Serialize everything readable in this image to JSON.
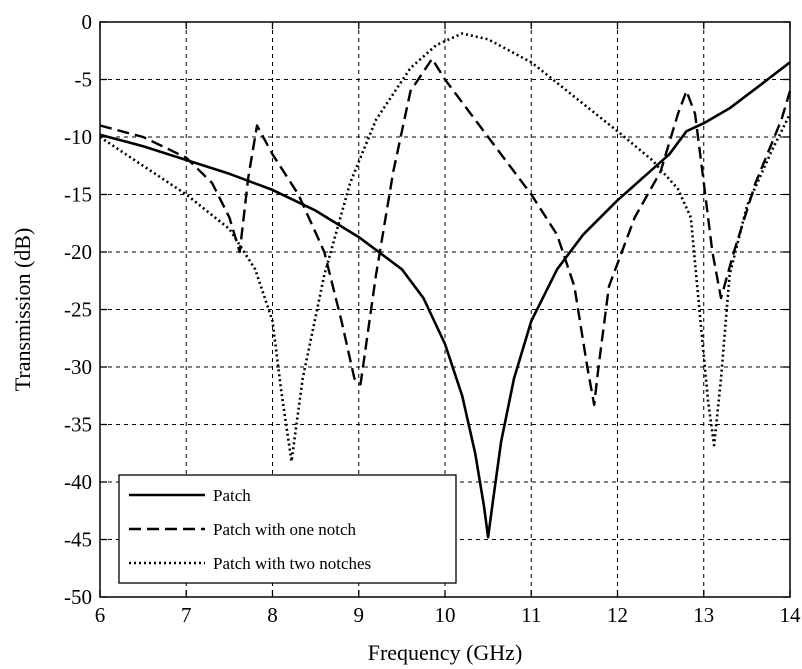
{
  "chart_data": {
    "type": "line",
    "title": "",
    "xlabel": "Frequency (GHz)",
    "ylabel": "Transmission (dB)",
    "xlim": [
      6,
      14
    ],
    "ylim": [
      -50,
      0
    ],
    "xticks": [
      6,
      7,
      8,
      9,
      10,
      11,
      12,
      13,
      14
    ],
    "yticks": [
      0,
      -5,
      -10,
      -15,
      -20,
      -25,
      -30,
      -35,
      -40,
      -45,
      -50
    ],
    "grid": true,
    "legend_position": "bottom-left",
    "series": [
      {
        "name": "Patch",
        "style": "solid",
        "x": [
          6.0,
          6.5,
          7.0,
          7.5,
          8.0,
          8.5,
          9.0,
          9.5,
          9.75,
          10.0,
          10.2,
          10.35,
          10.45,
          10.5,
          10.55,
          10.65,
          10.8,
          11.0,
          11.3,
          11.6,
          12.0,
          12.3,
          12.6,
          12.8,
          13.0,
          13.3,
          13.6,
          14.0
        ],
        "y": [
          -9.8,
          -10.8,
          -12.0,
          -13.2,
          -14.6,
          -16.4,
          -18.7,
          -21.5,
          -24.0,
          -28.0,
          -32.5,
          -37.5,
          -42.0,
          -44.8,
          -42.0,
          -36.5,
          -31.0,
          -26.0,
          -21.5,
          -18.5,
          -15.5,
          -13.5,
          -11.5,
          -9.5,
          -8.8,
          -7.5,
          -5.8,
          -3.5
        ]
      },
      {
        "name": "Patch with one notch",
        "style": "dashed",
        "x": [
          6.0,
          6.5,
          7.0,
          7.3,
          7.5,
          7.62,
          7.72,
          7.82,
          8.0,
          8.3,
          8.6,
          8.8,
          8.95,
          9.02,
          9.2,
          9.4,
          9.6,
          9.85,
          10.0,
          10.5,
          11.0,
          11.3,
          11.5,
          11.65,
          11.73,
          11.78,
          11.9,
          12.2,
          12.5,
          12.7,
          12.8,
          12.9,
          13.0,
          13.1,
          13.2,
          13.35,
          13.6,
          13.9,
          14.0
        ],
        "y": [
          -9.0,
          -10.0,
          -11.8,
          -14.0,
          -17.0,
          -20.0,
          -13.5,
          -9.0,
          -11.5,
          -15.0,
          -20.0,
          -26.0,
          -31.0,
          -31.5,
          -22.0,
          -13.0,
          -6.0,
          -3.2,
          -5.0,
          -10.0,
          -15.0,
          -18.5,
          -23.0,
          -30.0,
          -33.3,
          -30.0,
          -23.0,
          -17.0,
          -13.0,
          -8.0,
          -6.0,
          -8.0,
          -14.0,
          -20.0,
          -24.0,
          -20.0,
          -14.0,
          -8.5,
          -6.0
        ]
      },
      {
        "name": "Patch with two notches",
        "style": "dotted",
        "x": [
          6.0,
          6.5,
          7.0,
          7.5,
          7.8,
          8.0,
          8.1,
          8.22,
          8.35,
          8.6,
          8.9,
          9.2,
          9.6,
          9.9,
          10.2,
          10.5,
          11.0,
          11.5,
          12.0,
          12.4,
          12.7,
          12.85,
          12.95,
          13.05,
          13.12,
          13.2,
          13.3,
          13.5,
          13.8,
          14.0
        ],
        "y": [
          -10.0,
          -12.5,
          -15.0,
          -18.0,
          -21.5,
          -26.0,
          -32.0,
          -38.2,
          -31.0,
          -22.0,
          -14.0,
          -8.5,
          -4.0,
          -2.0,
          -1.0,
          -1.5,
          -3.5,
          -6.5,
          -9.5,
          -12.0,
          -14.5,
          -17.0,
          -25.0,
          -33.0,
          -36.8,
          -31.0,
          -22.0,
          -16.0,
          -11.0,
          -8.0
        ]
      }
    ]
  }
}
